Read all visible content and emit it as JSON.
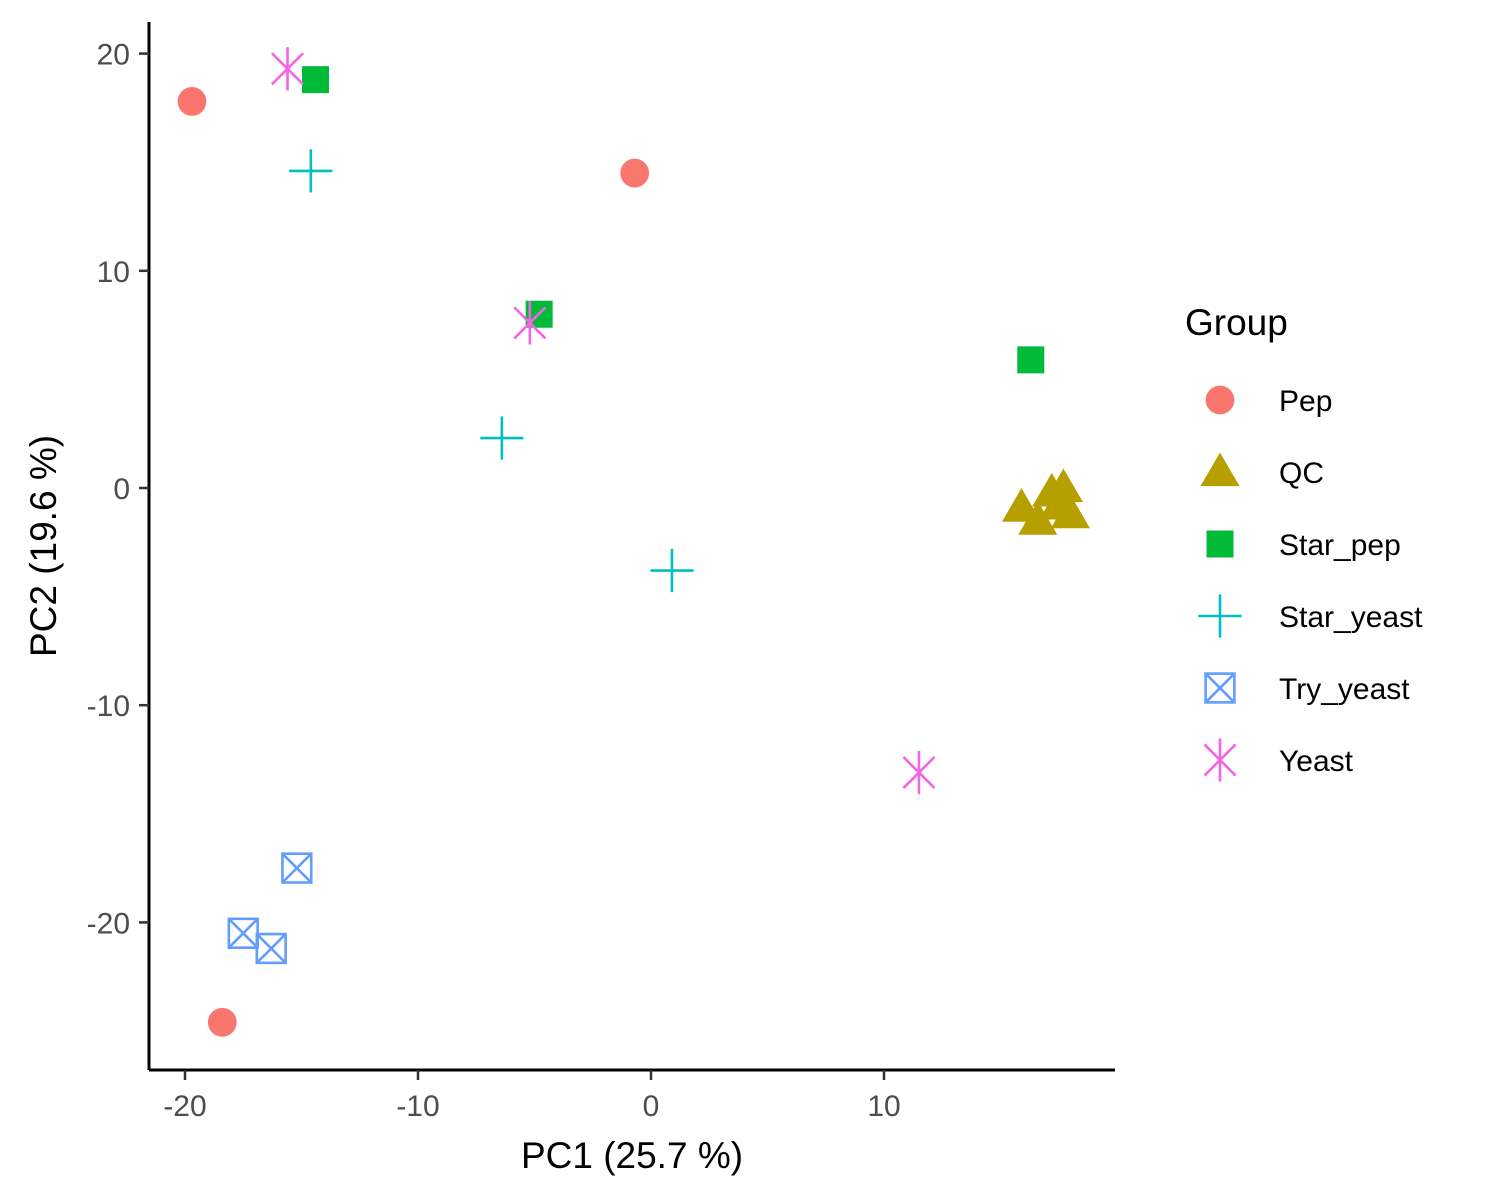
{
  "chart_data": {
    "type": "scatter",
    "xlabel": "PC1 (25.7 %)",
    "ylabel": "PC2 (19.6 %)",
    "xlim": [
      -21.5,
      19.5
    ],
    "ylim": [
      -26,
      21.5
    ],
    "xticks": [
      -20,
      -10,
      0,
      10
    ],
    "yticks": [
      20,
      10,
      0,
      -10,
      -20
    ],
    "grid": false,
    "legend": {
      "title": "Group",
      "placement": "right"
    },
    "series": [
      {
        "name": "Pep",
        "shape": "circle",
        "color": "#F8766D",
        "points": [
          [
            -19.7,
            17.8
          ],
          [
            -0.7,
            14.5
          ],
          [
            -18.4,
            -24.6
          ]
        ]
      },
      {
        "name": "QC",
        "shape": "triangle",
        "color": "#B79F00",
        "points": [
          [
            15.9,
            -0.9
          ],
          [
            16.6,
            -1.5
          ],
          [
            17.2,
            -0.2
          ],
          [
            17.7,
            0.0
          ],
          [
            18.0,
            -1.2
          ],
          [
            17.5,
            -0.8
          ]
        ]
      },
      {
        "name": "Star_pep",
        "shape": "square",
        "color": "#00BA38",
        "points": [
          [
            -14.4,
            18.8
          ],
          [
            -4.8,
            8.0
          ],
          [
            16.3,
            5.9
          ]
        ]
      },
      {
        "name": "Star_yeast",
        "shape": "plus",
        "color": "#00BFC4",
        "points": [
          [
            -14.6,
            14.6
          ],
          [
            -6.4,
            2.3
          ],
          [
            0.9,
            -3.8
          ]
        ]
      },
      {
        "name": "Try_yeast",
        "shape": "square-x",
        "color": "#619CFF",
        "points": [
          [
            -15.2,
            -17.5
          ],
          [
            -17.5,
            -20.5
          ],
          [
            -16.3,
            -21.2
          ]
        ]
      },
      {
        "name": "Yeast",
        "shape": "asterisk",
        "color": "#F564E3",
        "points": [
          [
            -15.6,
            19.3
          ],
          [
            -5.2,
            7.6
          ],
          [
            11.5,
            -13.1
          ]
        ]
      }
    ]
  }
}
